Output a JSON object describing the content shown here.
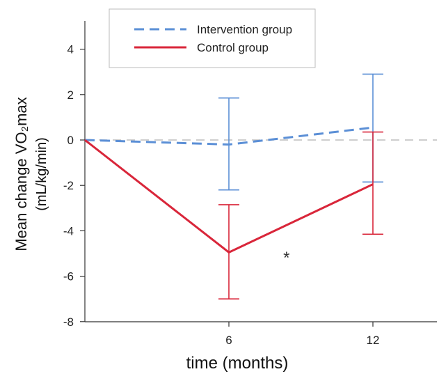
{
  "chart_data": {
    "type": "line",
    "xlabel": "time (months)",
    "ylabel": [
      "Mean change VO₂max",
      "(mL/kg/min)"
    ],
    "x_ticks": [
      6,
      12
    ],
    "y_ticks": [
      4,
      2,
      0,
      -2,
      -4,
      -6,
      -8
    ],
    "ylim": [
      -8,
      5
    ],
    "xlim": [
      0,
      15
    ],
    "reference_line": 0,
    "grid": false,
    "legend_position": "top-center",
    "annotation": {
      "text": "*",
      "x": 8.4,
      "y": -5
    },
    "series": [
      {
        "name": "Intervention group",
        "color": "#5b8fd6",
        "dash": "dashed",
        "x": [
          0,
          6,
          12
        ],
        "y": [
          0,
          -0.2,
          0.55
        ],
        "err_low": [
          null,
          -2.2,
          -1.85
        ],
        "err_high": [
          null,
          1.85,
          2.9
        ]
      },
      {
        "name": "Control group",
        "color": "#d9263a",
        "dash": "solid",
        "x": [
          0,
          6,
          12
        ],
        "y": [
          0,
          -4.95,
          -1.95
        ],
        "err_low": [
          null,
          -7.0,
          -4.15
        ],
        "err_high": [
          null,
          -2.85,
          0.35
        ]
      }
    ]
  }
}
